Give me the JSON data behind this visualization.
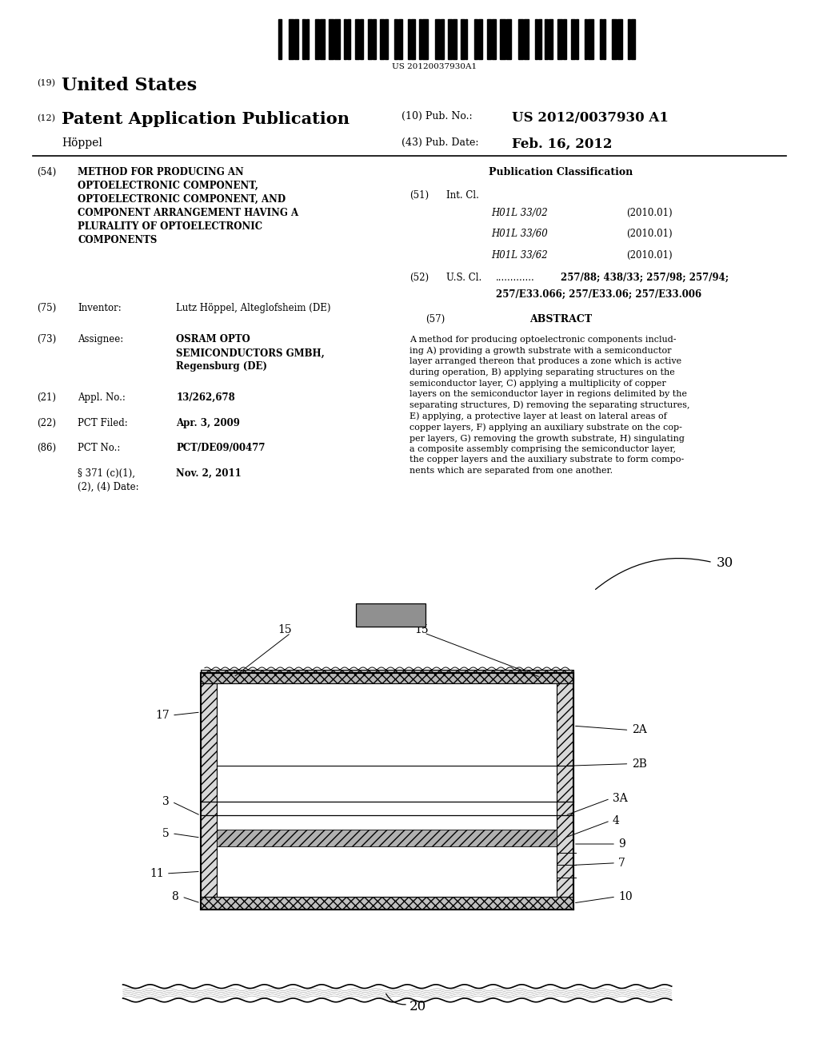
{
  "page_width": 10.24,
  "page_height": 13.2,
  "background_color": "#ffffff",
  "title_19": "(19)",
  "title_us": "United States",
  "title_12": "(12)",
  "title_pat": "Patent Application Publication",
  "inventor_name": "Höppel",
  "pub_no_label": "(10) Pub. No.:",
  "pub_no": "US 2012/0037930 A1",
  "pub_date_label": "(43) Pub. Date:",
  "pub_date": "Feb. 16, 2012",
  "section54_label": "(54)",
  "section54_title": "METHOD FOR PRODUCING AN\nOPTOELECTRONIC COMPONENT,\nOPTOELECTRONIC COMPONENT, AND\nCOMPONENT ARRANGEMENT HAVING A\nPLURALITY OF OPTOELECTRONIC\nCOMPONENTS",
  "section75_label": "(75)",
  "section75_key": "Inventor:",
  "section75_val": "Lutz Höppel, Alteglofsheim (DE)",
  "section73_label": "(73)",
  "section73_key": "Assignee:",
  "section73_val": "OSRAM OPTO\nSEMICONDUCTORS GMBH,\nRegensburg (DE)",
  "section21_label": "(21)",
  "section21_key": "Appl. No.:",
  "section21_val": "13/262,678",
  "section22_label": "(22)",
  "section22_key": "PCT Filed:",
  "section22_val": "Apr. 3, 2009",
  "section86_label": "(86)",
  "section86_key": "PCT No.:",
  "section86_val": "PCT/DE09/00477",
  "section86b_key": "§ 371 (c)(1),\n(2), (4) Date:",
  "section86b_val": "Nov. 2, 2011",
  "pub_class_title": "Publication Classification",
  "section51_label": "(51)",
  "section51_key": "Int. Cl.",
  "section51_classes": [
    [
      "H01L 33/02",
      "(2010.01)"
    ],
    [
      "H01L 33/60",
      "(2010.01)"
    ],
    [
      "H01L 33/62",
      "(2010.01)"
    ]
  ],
  "section52_label": "(52)",
  "section52_key": "U.S. Cl.",
  "section52_val_bold": "257/88; 438/33; 257/98; 257/94;",
  "section52_val_bold2": "257/E33.066; 257/E33.06; 257/E33.006",
  "section57_label": "(57)",
  "section57_key": "ABSTRACT",
  "section57_text": "A method for producing optoelectronic components includ-\ning A) providing a growth substrate with a semiconductor\nlayer arranged thereon that produces a zone which is active\nduring operation, B) applying separating structures on the\nsemiconductor layer, C) applying a multiplicity of copper\nlayers on the semiconductor layer in regions delimited by the\nseparating structures, D) removing the separating structures,\nE) applying, a protective layer at least on lateral areas of\ncopper layers, F) applying an auxiliary substrate on the cop-\nper layers, G) removing the growth substrate, H) singulating\na composite assembly comprising the semiconductor layer,\nthe copper layers and the auxiliary substrate to form compo-\nnents which are separated from one another.",
  "barcode_text": "US 20120037930A1"
}
